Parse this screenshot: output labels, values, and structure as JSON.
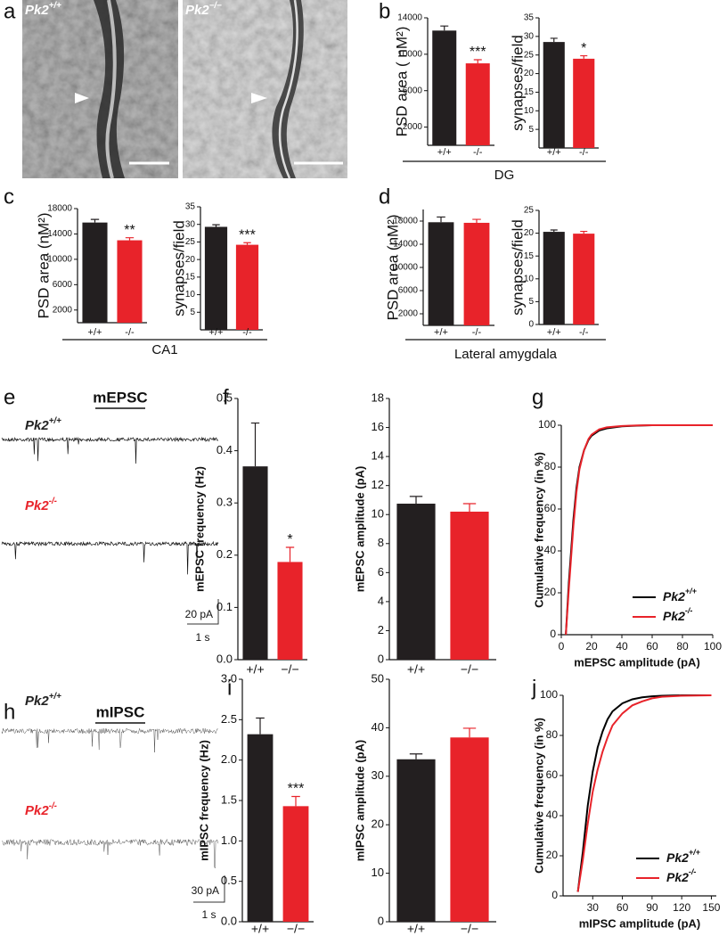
{
  "images": {
    "panel": "a",
    "labels": [
      {
        "gene": "Pk2",
        "sup": "+/+"
      },
      {
        "gene": "Pk2",
        "sup": "−/−"
      }
    ]
  },
  "traces": [
    {
      "panel": "e",
      "title": "mEPSC",
      "labels": [
        {
          "gene": "Pk2",
          "sup": "+/+"
        },
        {
          "gene": "Pk2",
          "sup": "-/-"
        }
      ],
      "scale_y": "20 pA",
      "scale_x": "1 s"
    },
    {
      "panel": "h",
      "title": "mIPSC",
      "labels": [
        {
          "gene": "Pk2",
          "sup": "+/+"
        },
        {
          "gene": "Pk2",
          "sup": "-/-"
        }
      ],
      "scale_y": "30 pA",
      "scale_x": "1 s"
    }
  ],
  "chart_data": [
    {
      "type": "bar",
      "panel": "b",
      "ylabel": "PSD area ( nM²)",
      "xlabel": "DG",
      "categories": [
        "+/+",
        "-/-"
      ],
      "values": [
        12600,
        9000
      ],
      "errors": [
        500,
        400
      ],
      "colors": [
        "#231f20",
        "#e8232a"
      ],
      "annotation": "***",
      "ylim": [
        0,
        14000
      ],
      "yticks": [
        2000,
        6000,
        10000,
        14000
      ]
    },
    {
      "type": "bar",
      "ylabel": "synapses/field",
      "categories": [
        "+/+",
        "-/-"
      ],
      "values": [
        28.5,
        24
      ],
      "errors": [
        1,
        0.8
      ],
      "colors": [
        "#231f20",
        "#e8232a"
      ],
      "annotation": "*",
      "ylim": [
        0,
        35
      ],
      "yticks": [
        5,
        10,
        15,
        20,
        25,
        30,
        35
      ]
    },
    {
      "type": "bar",
      "panel": "c",
      "ylabel": "PSD area (nM²)",
      "xlabel": "CA1",
      "categories": [
        "+/+",
        "-/-"
      ],
      "values": [
        15800,
        13000
      ],
      "errors": [
        500,
        400
      ],
      "colors": [
        "#231f20",
        "#e8232a"
      ],
      "annotation": "**",
      "ylim": [
        0,
        18000
      ],
      "yticks": [
        2000,
        6000,
        10000,
        14000,
        18000
      ]
    },
    {
      "type": "bar",
      "ylabel": "synapses/field",
      "categories": [
        "+/+",
        "-/-"
      ],
      "values": [
        29.3,
        24.2
      ],
      "errors": [
        0.6,
        0.6
      ],
      "colors": [
        "#231f20",
        "#e8232a"
      ],
      "annotation": "***",
      "ylim": [
        0,
        35
      ],
      "yticks": [
        5,
        10,
        15,
        20,
        25,
        30,
        35
      ]
    },
    {
      "type": "bar",
      "panel": "d",
      "ylabel": "PSD area (nM²)",
      "xlabel": "Lateral amygdala",
      "categories": [
        "+/+",
        "-/-"
      ],
      "values": [
        17800,
        17700
      ],
      "errors": [
        900,
        600
      ],
      "colors": [
        "#231f20",
        "#e8232a"
      ],
      "ylim": [
        0,
        20000
      ],
      "yticks": [
        2000,
        6000,
        10000,
        14000,
        18000
      ]
    },
    {
      "type": "bar",
      "ylabel": "synapses/field",
      "categories": [
        "+/+",
        "-/-"
      ],
      "values": [
        20.3,
        19.9
      ],
      "errors": [
        0.4,
        0.5
      ],
      "colors": [
        "#231f20",
        "#e8232a"
      ],
      "ylim": [
        0,
        25
      ],
      "yticks": [
        0,
        5,
        10,
        15,
        20,
        25
      ]
    },
    {
      "type": "bar",
      "panel": "f",
      "ylabel": "mEPSC frequency (Hz)",
      "categories": [
        "+/+",
        "−/−"
      ],
      "values": [
        0.37,
        0.187
      ],
      "errors": [
        0.083,
        0.028
      ],
      "colors": [
        "#231f20",
        "#e8232a"
      ],
      "annotation": "*",
      "ylim": [
        0,
        0.5
      ],
      "yticks": [
        {
          "value": 0,
          "label": "0.0"
        },
        0.1,
        0.2,
        0.3,
        0.4,
        0.5
      ]
    },
    {
      "type": "bar",
      "ylabel": "mEPSC amplitude (pA)",
      "categories": [
        "+/+",
        "−/−"
      ],
      "values": [
        10.75,
        10.2
      ],
      "errors": [
        0.5,
        0.55
      ],
      "colors": [
        "#231f20",
        "#e8232a"
      ],
      "ylim": [
        0,
        18
      ],
      "yticks": [
        0,
        2,
        4,
        6,
        8,
        10,
        12,
        14,
        16,
        18
      ]
    },
    {
      "type": "line",
      "panel": "g",
      "xlabel": "mEPSC amplitude (pA)",
      "ylabel": "Cumulative frequency (in %)",
      "legend": "lower right",
      "x": [
        3,
        5,
        8,
        10,
        12,
        15,
        18,
        20,
        25,
        30,
        40,
        50,
        60,
        80,
        100
      ],
      "series": [
        {
          "name": "Pk2",
          "name_sup": "+/+",
          "color": "#000000",
          "values": [
            0,
            25,
            55,
            70,
            80,
            88,
            93,
            95,
            97.5,
            98.5,
            99.5,
            99.8,
            100,
            100,
            100
          ]
        },
        {
          "name": "Pk2",
          "name_sup": "-/-",
          "color": "#e8232a",
          "values": [
            0,
            22,
            52,
            68,
            79,
            88,
            93.5,
            95.5,
            98,
            99,
            99.6,
            99.9,
            100,
            100,
            100
          ]
        }
      ],
      "xlim": [
        0,
        100
      ],
      "xticks": [
        0,
        20,
        40,
        60,
        80,
        100
      ],
      "ylim": [
        0,
        100
      ],
      "yticks": [
        0,
        20,
        40,
        60,
        80,
        100
      ]
    },
    {
      "type": "bar",
      "panel": "i",
      "ylabel": "mIPSC frequency (Hz)",
      "categories": [
        "+/+",
        "−/−"
      ],
      "values": [
        2.32,
        1.43
      ],
      "errors": [
        0.2,
        0.12
      ],
      "colors": [
        "#231f20",
        "#e8232a"
      ],
      "annotation": "***",
      "ylim": [
        0,
        3
      ],
      "yticks": [
        {
          "value": 0,
          "label": "0.0"
        },
        0.5,
        {
          "value": 1,
          "label": "1.0"
        },
        1.5,
        {
          "value": 2,
          "label": "2.0"
        },
        2.5,
        {
          "value": 3,
          "label": "3.0"
        }
      ]
    },
    {
      "type": "bar",
      "ylabel": "mIPSC amplitude (pA)",
      "categories": [
        "+/+",
        "−/−"
      ],
      "values": [
        33.5,
        38
      ],
      "errors": [
        1.1,
        1.9
      ],
      "colors": [
        "#231f20",
        "#e8232a"
      ],
      "ylim": [
        0,
        50
      ],
      "yticks": [
        0,
        10,
        20,
        30,
        40,
        50
      ]
    },
    {
      "type": "line",
      "panel": "j",
      "xlabel": "mIPSC amplitude (pA)",
      "ylabel": "Cumulative frequency (in %)",
      "legend": "lower right",
      "x": [
        15,
        20,
        25,
        30,
        35,
        40,
        45,
        50,
        60,
        70,
        80,
        90,
        100,
        120,
        150
      ],
      "series": [
        {
          "name": "Pk2",
          "name_sup": "+/+",
          "color": "#000000",
          "values": [
            2,
            22,
            45,
            62,
            74,
            82,
            88,
            92,
            96,
            98,
            99,
            99.5,
            99.8,
            100,
            100
          ]
        },
        {
          "name": "Pk2",
          "name_sup": "-/-",
          "color": "#e8232a",
          "values": [
            2,
            18,
            36,
            52,
            63,
            72,
            79,
            85,
            91,
            95,
            97,
            98.5,
            99.3,
            99.8,
            100
          ]
        }
      ],
      "xlim": [
        0,
        155
      ],
      "xticks": [
        30,
        60,
        90,
        120,
        150
      ],
      "ylim": [
        0,
        100
      ],
      "yticks": [
        0,
        20,
        40,
        60,
        80,
        100
      ]
    }
  ]
}
